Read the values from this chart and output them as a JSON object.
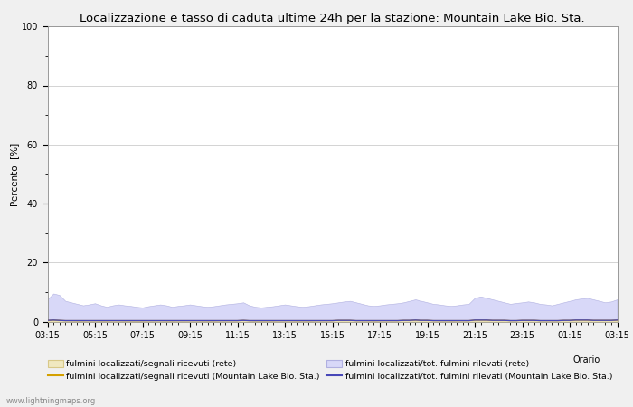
{
  "title": "Localizzazione e tasso di caduta ultime 24h per la stazione: Mountain Lake Bio. Sta.",
  "xlabel": "Orario",
  "ylabel": "Percento  [%]",
  "ylim": [
    0,
    100
  ],
  "yticks": [
    0,
    20,
    40,
    60,
    80,
    100
  ],
  "xtick_labels": [
    "03:15",
    "05:15",
    "07:15",
    "09:15",
    "11:15",
    "13:15",
    "15:15",
    "17:15",
    "19:15",
    "21:15",
    "23:15",
    "01:15",
    "03:15"
  ],
  "background_color": "#f0f0f0",
  "plot_bg_color": "#ffffff",
  "grid_color": "#cccccc",
  "fill_rete_color": "#d8d8f8",
  "fill_rete_edge": "#b0b0e0",
  "fill_loc_rete_color": "#f0e8c0",
  "fill_loc_rete_edge": "#d8c888",
  "line_loc_sta_color": "#d4a000",
  "line_tot_sta_color": "#4848b8",
  "watermark": "www.lightningmaps.org",
  "n_points": 97,
  "rete_fill_values": [
    7.5,
    9.5,
    9.0,
    7.0,
    6.5,
    6.0,
    5.5,
    5.8,
    6.2,
    5.5,
    5.0,
    5.5,
    5.8,
    5.5,
    5.3,
    5.0,
    4.8,
    5.2,
    5.5,
    5.8,
    5.5,
    5.0,
    5.3,
    5.5,
    5.8,
    5.5,
    5.2,
    5.0,
    5.2,
    5.5,
    5.8,
    6.0,
    6.2,
    6.5,
    5.5,
    5.0,
    4.8,
    5.0,
    5.2,
    5.5,
    5.8,
    5.5,
    5.2,
    5.0,
    5.2,
    5.5,
    5.8,
    6.0,
    6.2,
    6.5,
    6.8,
    7.0,
    6.5,
    6.0,
    5.5,
    5.3,
    5.5,
    5.8,
    6.0,
    6.2,
    6.5,
    7.0,
    7.5,
    7.0,
    6.5,
    6.0,
    5.8,
    5.5,
    5.3,
    5.5,
    5.8,
    6.0,
    8.0,
    8.5,
    8.0,
    7.5,
    7.0,
    6.5,
    6.0,
    6.3,
    6.5,
    6.8,
    6.5,
    6.0,
    5.8,
    5.5,
    6.0,
    6.5,
    7.0,
    7.5,
    7.8,
    8.0,
    7.5,
    7.0,
    6.5,
    6.8,
    7.5
  ],
  "loc_rete_values": [
    0.5,
    0.6,
    0.5,
    0.4,
    0.4,
    0.3,
    0.3,
    0.4,
    0.4,
    0.3,
    0.3,
    0.4,
    0.4,
    0.3,
    0.3,
    0.3,
    0.3,
    0.4,
    0.4,
    0.4,
    0.3,
    0.3,
    0.4,
    0.4,
    0.4,
    0.4,
    0.3,
    0.3,
    0.3,
    0.4,
    0.4,
    0.4,
    0.4,
    0.5,
    0.4,
    0.3,
    0.3,
    0.3,
    0.3,
    0.4,
    0.4,
    0.4,
    0.3,
    0.3,
    0.3,
    0.4,
    0.4,
    0.4,
    0.4,
    0.5,
    0.5,
    0.5,
    0.4,
    0.4,
    0.4,
    0.3,
    0.4,
    0.4,
    0.4,
    0.4,
    0.5,
    0.5,
    0.6,
    0.5,
    0.5,
    0.4,
    0.4,
    0.4,
    0.3,
    0.4,
    0.4,
    0.4,
    0.6,
    0.6,
    0.6,
    0.5,
    0.5,
    0.5,
    0.4,
    0.4,
    0.5,
    0.5,
    0.5,
    0.4,
    0.4,
    0.4,
    0.4,
    0.5,
    0.5,
    0.6,
    0.6,
    0.6,
    0.5,
    0.5,
    0.5,
    0.5,
    0.6
  ],
  "line_loc_sta_values": [
    0.4,
    0.5,
    0.4,
    0.3,
    0.3,
    0.3,
    0.3,
    0.3,
    0.3,
    0.3,
    0.3,
    0.3,
    0.3,
    0.3,
    0.3,
    0.3,
    0.3,
    0.3,
    0.3,
    0.3,
    0.3,
    0.3,
    0.3,
    0.3,
    0.3,
    0.3,
    0.3,
    0.3,
    0.3,
    0.3,
    0.3,
    0.3,
    0.3,
    0.4,
    0.3,
    0.3,
    0.3,
    0.3,
    0.3,
    0.3,
    0.3,
    0.3,
    0.3,
    0.3,
    0.3,
    0.3,
    0.3,
    0.3,
    0.3,
    0.4,
    0.4,
    0.4,
    0.3,
    0.3,
    0.3,
    0.3,
    0.3,
    0.3,
    0.3,
    0.3,
    0.4,
    0.4,
    0.5,
    0.4,
    0.4,
    0.3,
    0.3,
    0.3,
    0.3,
    0.3,
    0.3,
    0.3,
    0.5,
    0.5,
    0.5,
    0.4,
    0.4,
    0.4,
    0.3,
    0.3,
    0.4,
    0.4,
    0.4,
    0.3,
    0.3,
    0.3,
    0.3,
    0.4,
    0.4,
    0.5,
    0.5,
    0.5,
    0.4,
    0.4,
    0.4,
    0.4,
    0.5
  ],
  "line_tot_sta_values": [
    0.4,
    0.5,
    0.4,
    0.3,
    0.3,
    0.3,
    0.3,
    0.3,
    0.3,
    0.3,
    0.3,
    0.3,
    0.3,
    0.3,
    0.3,
    0.3,
    0.3,
    0.3,
    0.3,
    0.3,
    0.3,
    0.3,
    0.3,
    0.3,
    0.3,
    0.3,
    0.3,
    0.3,
    0.3,
    0.3,
    0.3,
    0.3,
    0.3,
    0.4,
    0.3,
    0.3,
    0.3,
    0.3,
    0.3,
    0.3,
    0.3,
    0.3,
    0.3,
    0.3,
    0.3,
    0.3,
    0.3,
    0.3,
    0.3,
    0.4,
    0.4,
    0.4,
    0.3,
    0.3,
    0.3,
    0.3,
    0.3,
    0.3,
    0.3,
    0.3,
    0.4,
    0.4,
    0.5,
    0.4,
    0.4,
    0.3,
    0.3,
    0.3,
    0.3,
    0.3,
    0.3,
    0.3,
    0.5,
    0.5,
    0.5,
    0.4,
    0.4,
    0.4,
    0.3,
    0.3,
    0.4,
    0.4,
    0.4,
    0.3,
    0.3,
    0.3,
    0.3,
    0.4,
    0.4,
    0.5,
    0.5,
    0.5,
    0.4,
    0.4,
    0.4,
    0.4,
    0.5
  ],
  "legend_labels": [
    "fulmini localizzati/segnali ricevuti (rete)",
    "fulmini localizzati/segnali ricevuti (Mountain Lake Bio. Sta.)",
    "fulmini localizzati/tot. fulmini rilevati (rete)",
    "fulmini localizzati/tot. fulmini rilevati (Mountain Lake Bio. Sta.)"
  ],
  "minor_ytick_positions": [
    10,
    30,
    50,
    70,
    90
  ],
  "title_fontsize": 9.5,
  "axis_fontsize": 7.5,
  "tick_fontsize": 7,
  "legend_fontsize": 6.8
}
